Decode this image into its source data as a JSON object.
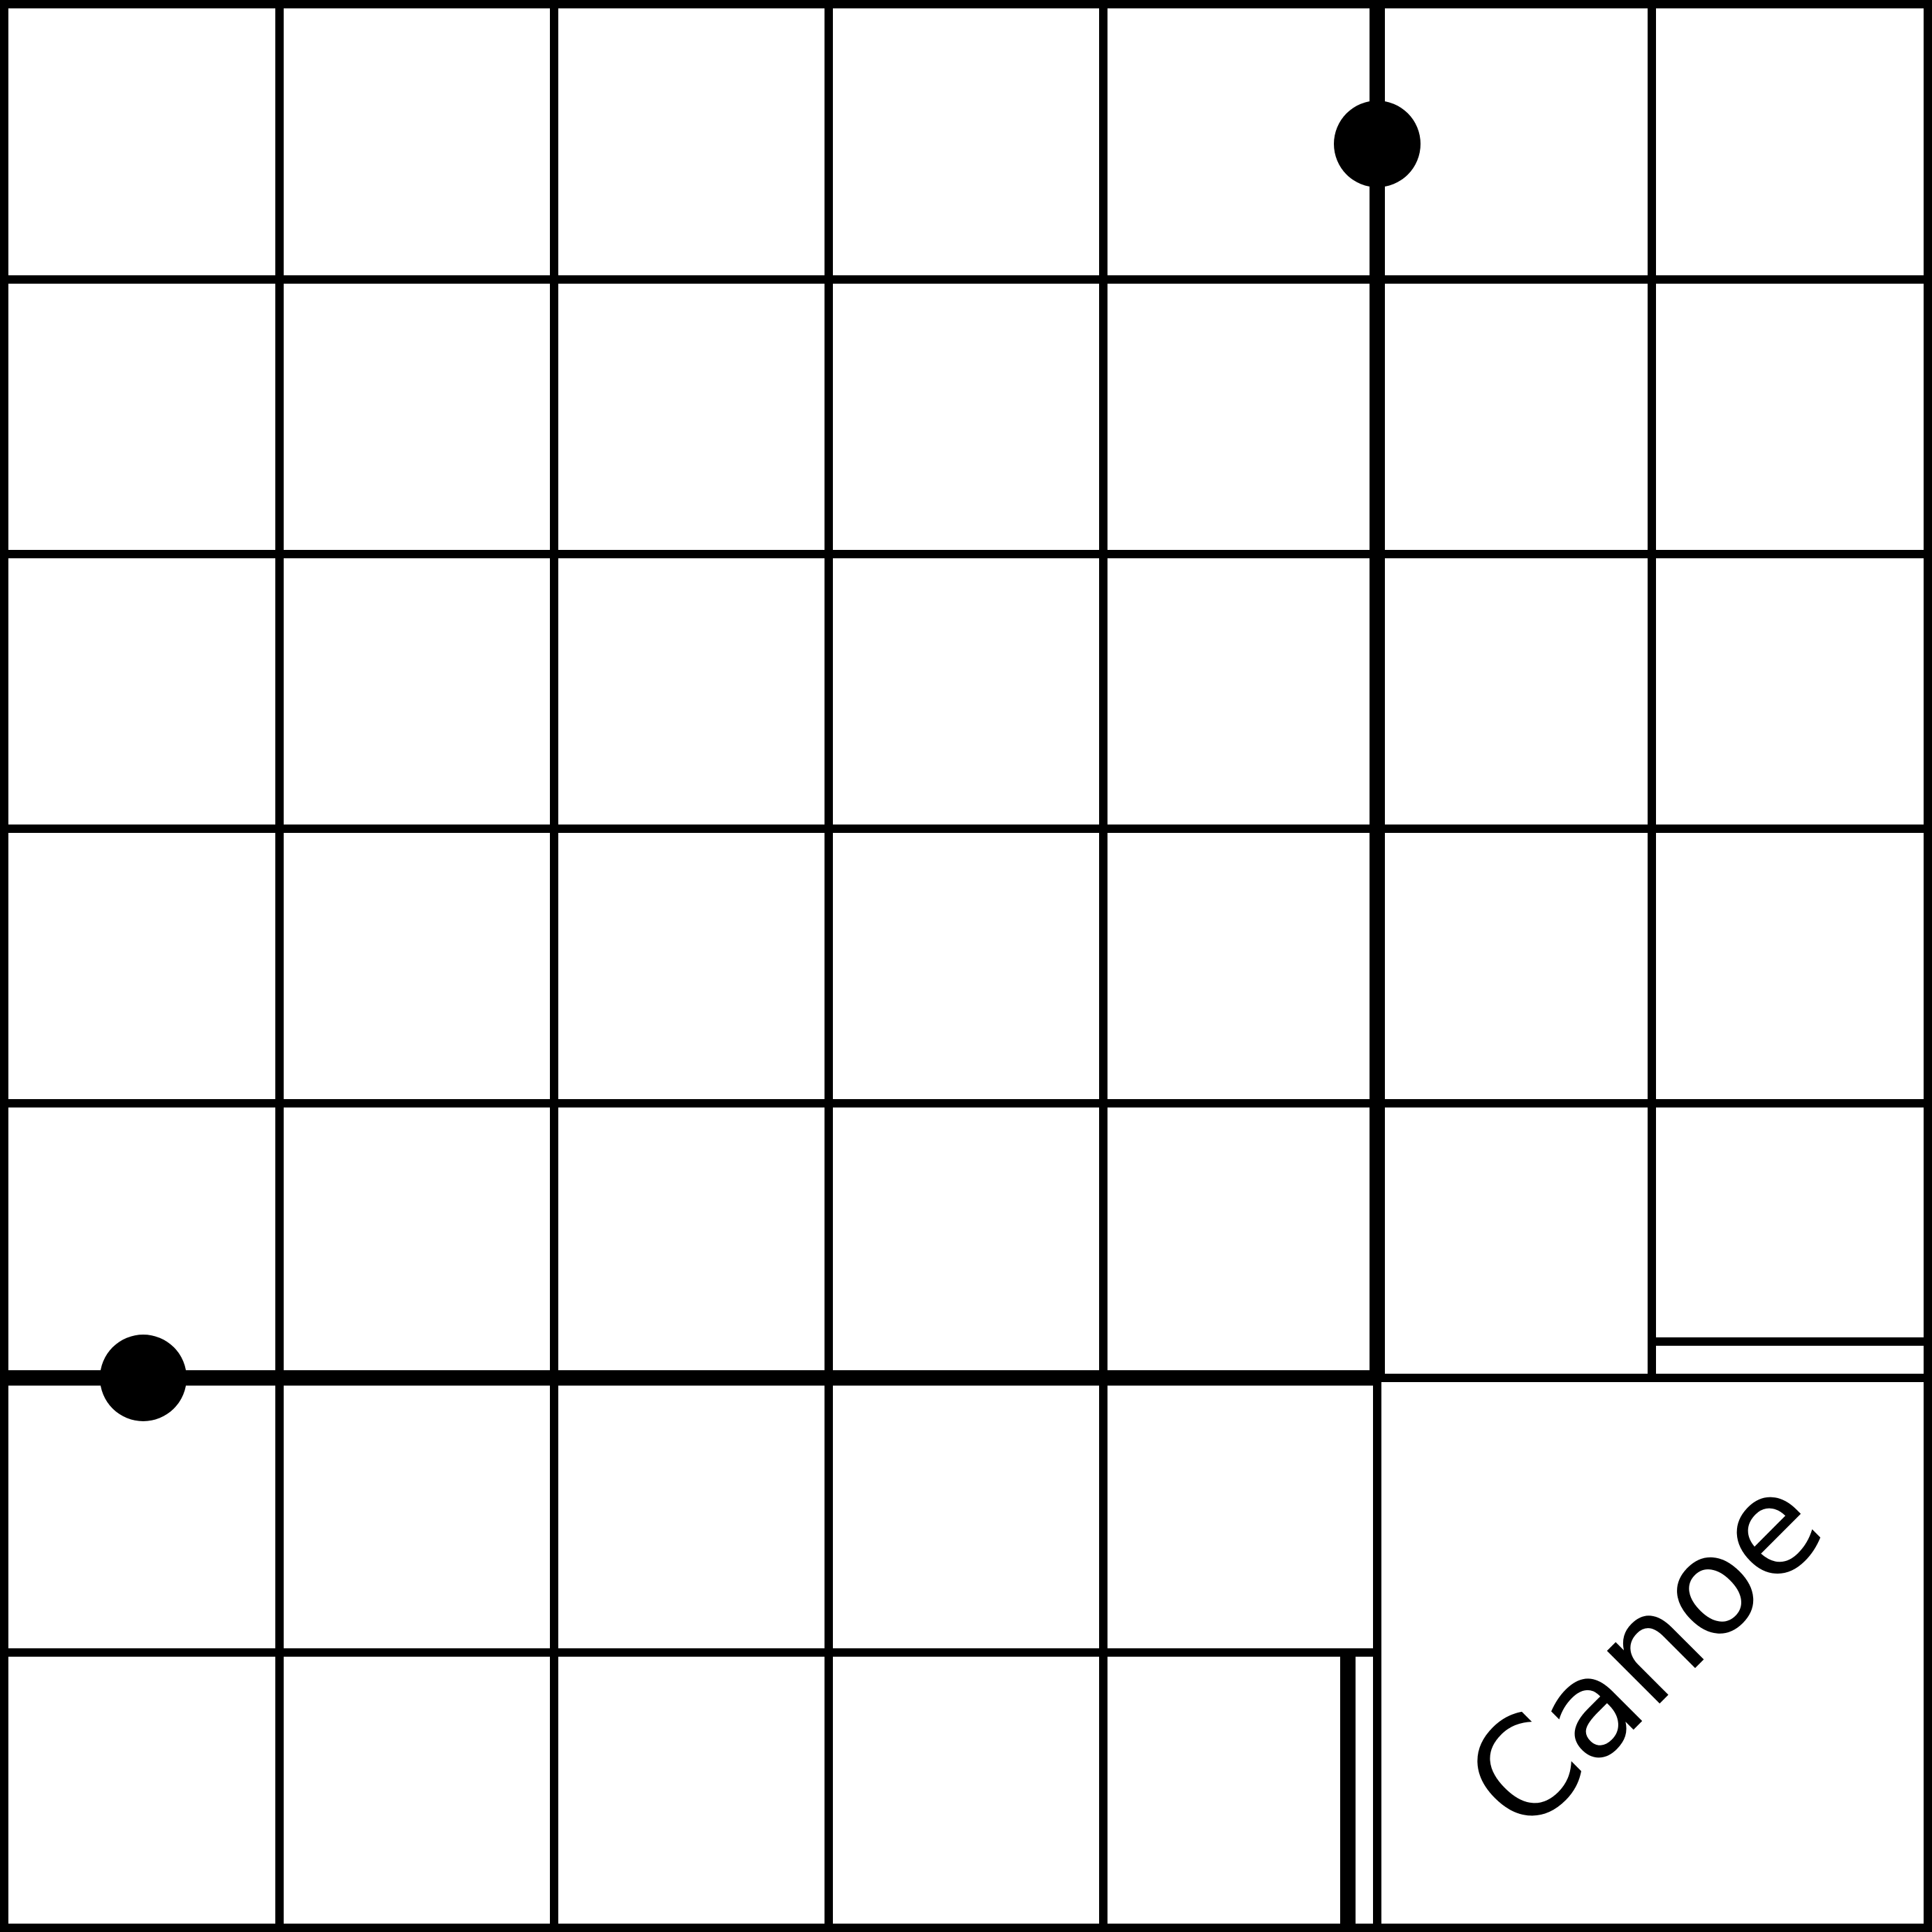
{
  "diagram": {
    "label": "Canoe",
    "label_rotation_deg": -45,
    "grid": {
      "rows": 7,
      "cols": 7,
      "line_color": "#000000",
      "background_color": "#ffffff"
    },
    "markers": [
      {
        "name": "dot-top",
        "color": "#000000"
      },
      {
        "name": "dot-left",
        "color": "#000000"
      }
    ]
  }
}
